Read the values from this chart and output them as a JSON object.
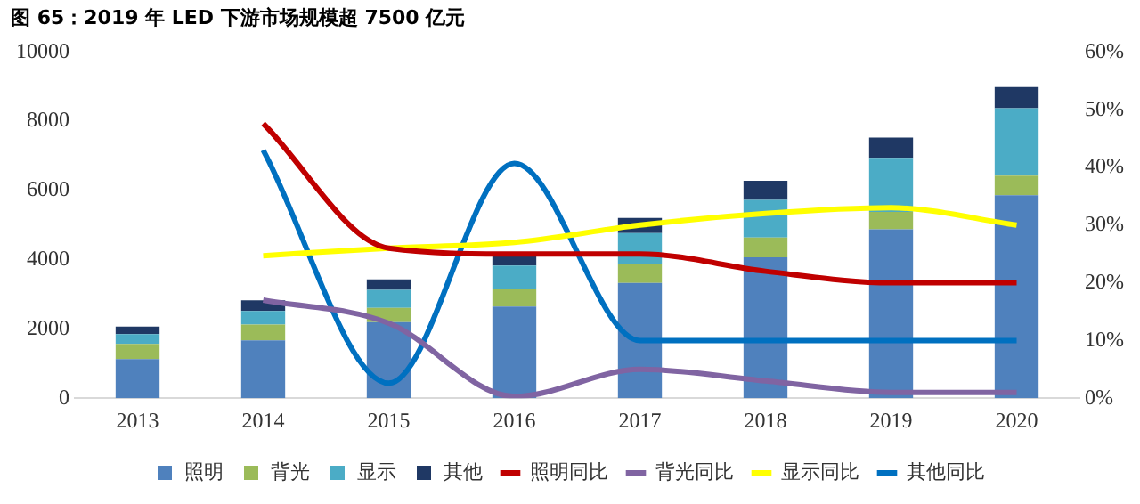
{
  "chart_data": {
    "type": "bar",
    "title": "图 65：2019 年 LED 下游市场规模超 7500 亿元",
    "stacked": true,
    "categories": [
      "2013",
      "2014",
      "2015",
      "2016",
      "2017",
      "2018",
      "2019",
      "2020"
    ],
    "series": [
      {
        "name": "照明",
        "color": "#4f81bd",
        "values": [
          1130,
          1670,
          2200,
          2650,
          3330,
          4070,
          4880,
          5860
        ]
      },
      {
        "name": "背光",
        "color": "#9bbb59",
        "values": [
          440,
          460,
          410,
          500,
          540,
          570,
          500,
          570
        ]
      },
      {
        "name": "显示",
        "color": "#4bacc6",
        "values": [
          280,
          390,
          520,
          680,
          900,
          1090,
          1560,
          1950
        ]
      },
      {
        "name": "其他",
        "color": "#1f3864",
        "values": [
          220,
          310,
          300,
          340,
          440,
          550,
          590,
          610
        ]
      },
      {
        "name": "照明同比",
        "type": "line",
        "axis": "y2",
        "color": "#c00000",
        "values": [
          null,
          47.6,
          26,
          25,
          25,
          22,
          20,
          20
        ]
      },
      {
        "name": "背光同比",
        "type": "line",
        "axis": "y2",
        "color": "#8064a2",
        "values": [
          null,
          17,
          13,
          0.3,
          5,
          3,
          1,
          1
        ]
      },
      {
        "name": "显示同比",
        "type": "line",
        "axis": "y2",
        "color": "#ffff00",
        "values": [
          null,
          24.7,
          26,
          27,
          30,
          32,
          33,
          30
        ]
      },
      {
        "name": "其他同比",
        "type": "line",
        "axis": "y2",
        "color": "#0070c0",
        "values": [
          null,
          43,
          2.6,
          40.7,
          10,
          10,
          10,
          10
        ]
      }
    ],
    "ylim": [
      0,
      10000
    ],
    "yticks": [
      0,
      2000,
      4000,
      6000,
      8000,
      10000
    ],
    "y2lim": [
      0,
      60
    ],
    "y2ticks": [
      {
        "value": 0,
        "label": "0%"
      },
      {
        "value": 10,
        "label": "10%"
      },
      {
        "value": 20,
        "label": "20%"
      },
      {
        "value": 30,
        "label": "30%"
      },
      {
        "value": 40,
        "label": "40%"
      },
      {
        "value": 50,
        "label": "50%"
      },
      {
        "value": 60,
        "label": "60%"
      }
    ],
    "grid": false,
    "legend": "bottom",
    "line_style": "solid",
    "marker": "none"
  }
}
